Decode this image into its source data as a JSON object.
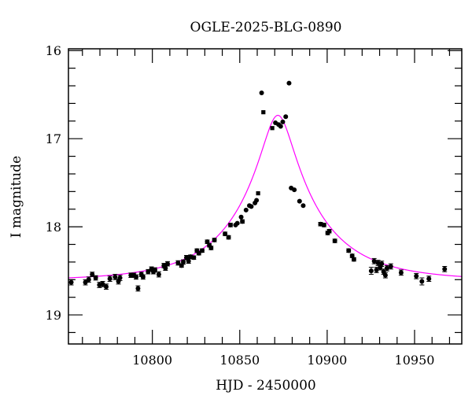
{
  "chart_data": {
    "type": "scatter",
    "title": "OGLE-2025-BLG-0890",
    "xlabel": "HJD - 2450000",
    "ylabel": "I magnitude",
    "xlim": [
      10752,
      10977
    ],
    "ylim": [
      19.33,
      15.98
    ],
    "y_inverted": true,
    "x_ticks": [
      10800,
      10850,
      10900,
      10950
    ],
    "x_tick_labels": [
      "10800",
      "10850",
      "10900",
      "10950"
    ],
    "y_ticks": [
      16,
      17,
      18,
      19
    ],
    "y_tick_labels": [
      "16",
      "17",
      "18",
      "19"
    ],
    "grid": false,
    "colors": {
      "points": "#000000",
      "model": "#ff00ff"
    },
    "model": {
      "t0": 10871.8,
      "u0": 0.18,
      "tE": 47,
      "baseline": 18.61
    },
    "points": [
      {
        "t": 10753.6,
        "m": 18.63,
        "e": 0.03
      },
      {
        "t": 10761.7,
        "m": 18.63,
        "e": 0.03
      },
      {
        "t": 10763.6,
        "m": 18.6,
        "e": 0.03
      },
      {
        "t": 10765.6,
        "m": 18.54,
        "e": 0.025
      },
      {
        "t": 10767.6,
        "m": 18.58,
        "e": 0.025
      },
      {
        "t": 10769.7,
        "m": 18.66,
        "e": 0.03
      },
      {
        "t": 10771.6,
        "m": 18.65,
        "e": 0.03
      },
      {
        "t": 10773.6,
        "m": 18.68,
        "e": 0.03
      },
      {
        "t": 10775.7,
        "m": 18.59,
        "e": 0.03
      },
      {
        "t": 10778.7,
        "m": 18.57,
        "e": 0.03
      },
      {
        "t": 10780.6,
        "m": 18.62,
        "e": 0.03
      },
      {
        "t": 10781.5,
        "m": 18.58,
        "e": 0.03
      },
      {
        "t": 10787.7,
        "m": 18.55,
        "e": 0.025
      },
      {
        "t": 10789.5,
        "m": 18.55,
        "e": 0.025
      },
      {
        "t": 10790.7,
        "m": 18.57,
        "e": 0.025
      },
      {
        "t": 10791.8,
        "m": 18.7,
        "e": 0.03
      },
      {
        "t": 10793.7,
        "m": 18.54,
        "e": 0.025
      },
      {
        "t": 10794.7,
        "m": 18.57,
        "e": 0.025
      },
      {
        "t": 10797.6,
        "m": 18.51,
        "e": 0.025
      },
      {
        "t": 10799.5,
        "m": 18.48,
        "e": 0.025
      },
      {
        "t": 10800.6,
        "m": 18.51,
        "e": 0.025
      },
      {
        "t": 10801.5,
        "m": 18.49,
        "e": 0.025
      },
      {
        "t": 10803.7,
        "m": 18.54,
        "e": 0.03
      },
      {
        "t": 10806.6,
        "m": 18.44,
        "e": 0.025
      },
      {
        "t": 10807.5,
        "m": 18.47,
        "e": 0.025
      },
      {
        "t": 10808.7,
        "m": 18.42,
        "e": 0.025
      },
      {
        "t": 10814.7,
        "m": 18.41,
        "e": 0.025
      },
      {
        "t": 10816.7,
        "m": 18.44,
        "e": 0.02
      },
      {
        "t": 10817.7,
        "m": 18.4,
        "e": 0.025
      },
      {
        "t": 10819.5,
        "m": 18.35,
        "e": 0.025
      },
      {
        "t": 10820.7,
        "m": 18.39,
        "e": 0.025
      },
      {
        "t": 10821.8,
        "m": 18.34,
        "e": 0.02
      },
      {
        "t": 10823.7,
        "m": 18.35,
        "e": 0.02
      },
      {
        "t": 10825.5,
        "m": 18.27,
        "e": 0.02
      },
      {
        "t": 10826.6,
        "m": 18.3,
        "e": 0.02
      },
      {
        "t": 10828.5,
        "m": 18.27,
        "e": 0.02
      },
      {
        "t": 10831.4,
        "m": 18.17,
        "e": 0.02
      },
      {
        "t": 10832.6,
        "m": 18.21,
        "e": 0.02
      },
      {
        "t": 10833.6,
        "m": 18.24,
        "e": 0.02
      },
      {
        "t": 10835.5,
        "m": 18.15,
        "e": 0.02
      },
      {
        "t": 10841.6,
        "m": 18.08,
        "e": 0.02
      },
      {
        "t": 10843.6,
        "m": 18.12,
        "e": 0.02
      },
      {
        "t": 10844.7,
        "m": 17.98,
        "e": 0.02
      },
      {
        "t": 10847.6,
        "m": 17.98,
        "e": 0.015
      },
      {
        "t": 10848.6,
        "m": 17.96,
        "e": 0.015
      },
      {
        "t": 10850.8,
        "m": 17.89,
        "e": 0.015
      },
      {
        "t": 10851.5,
        "m": 17.94,
        "e": 0.02
      },
      {
        "t": 10853.6,
        "m": 17.81,
        "e": 0.015
      },
      {
        "t": 10855.5,
        "m": 17.76,
        "e": 0.015
      },
      {
        "t": 10856.6,
        "m": 17.77,
        "e": 0.015
      },
      {
        "t": 10858.7,
        "m": 17.73,
        "e": 0.015
      },
      {
        "t": 10859.6,
        "m": 17.7,
        "e": 0.015
      },
      {
        "t": 10860.5,
        "m": 17.62,
        "e": 0.01,
        "marker": "square"
      },
      {
        "t": 10862.5,
        "m": 16.48,
        "e": 0.005
      },
      {
        "t": 10863.5,
        "m": 16.7,
        "e": 0.01,
        "marker": "square"
      },
      {
        "t": 10868.6,
        "m": 16.88,
        "e": 0.01,
        "marker": "square"
      },
      {
        "t": 10870.4,
        "m": 16.82,
        "e": 0.01
      },
      {
        "t": 10872.2,
        "m": 16.84,
        "e": 0.01
      },
      {
        "t": 10873.4,
        "m": 16.86,
        "e": 0.01
      },
      {
        "t": 10874.6,
        "m": 16.81,
        "e": 0.01
      },
      {
        "t": 10876.3,
        "m": 16.75,
        "e": 0.005
      },
      {
        "t": 10878.2,
        "m": 16.37,
        "e": 0.005
      },
      {
        "t": 10879.4,
        "m": 17.56,
        "e": 0.01
      },
      {
        "t": 10881.2,
        "m": 17.58,
        "e": 0.01
      },
      {
        "t": 10884.2,
        "m": 17.71,
        "e": 0.01
      },
      {
        "t": 10886.3,
        "m": 17.76,
        "e": 0.01
      },
      {
        "t": 10896.2,
        "m": 17.97,
        "e": 0.02
      },
      {
        "t": 10898.2,
        "m": 17.98,
        "e": 0.02
      },
      {
        "t": 10900.3,
        "m": 18.07,
        "e": 0.02
      },
      {
        "t": 10901.2,
        "m": 18.05,
        "e": 0.02
      },
      {
        "t": 10904.4,
        "m": 18.16,
        "e": 0.02
      },
      {
        "t": 10912.3,
        "m": 18.27,
        "e": 0.02
      },
      {
        "t": 10914.3,
        "m": 18.33,
        "e": 0.02
      },
      {
        "t": 10915.3,
        "m": 18.37,
        "e": 0.02
      },
      {
        "t": 10925.2,
        "m": 18.5,
        "e": 0.04
      },
      {
        "t": 10926.9,
        "m": 18.39,
        "e": 0.03
      },
      {
        "t": 10928.2,
        "m": 18.49,
        "e": 0.03
      },
      {
        "t": 10929.1,
        "m": 18.41,
        "e": 0.03
      },
      {
        "t": 10930.3,
        "m": 18.46,
        "e": 0.03
      },
      {
        "t": 10931.2,
        "m": 18.42,
        "e": 0.03
      },
      {
        "t": 10932.3,
        "m": 18.51,
        "e": 0.03
      },
      {
        "t": 10933.3,
        "m": 18.55,
        "e": 0.03
      },
      {
        "t": 10934.2,
        "m": 18.47,
        "e": 0.03
      },
      {
        "t": 10936.4,
        "m": 18.45,
        "e": 0.03
      },
      {
        "t": 10942.3,
        "m": 18.52,
        "e": 0.03
      },
      {
        "t": 10951.0,
        "m": 18.56,
        "e": 0.03
      },
      {
        "t": 10954.2,
        "m": 18.62,
        "e": 0.04
      },
      {
        "t": 10958.2,
        "m": 18.59,
        "e": 0.03
      },
      {
        "t": 10967.2,
        "m": 18.48,
        "e": 0.03
      }
    ]
  }
}
